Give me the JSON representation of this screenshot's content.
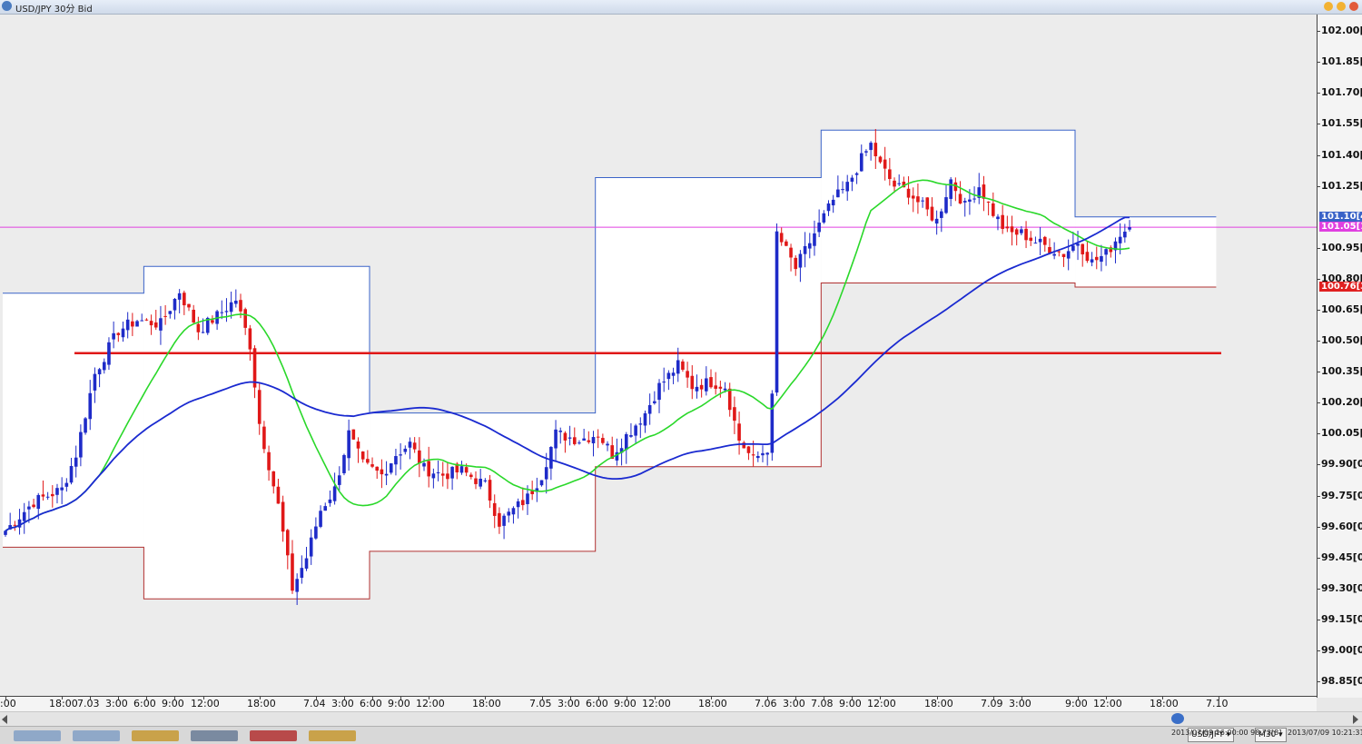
{
  "window": {
    "title": "USD/JPY 30分 Bid"
  },
  "price_axis": {
    "labels": [
      "102.00[",
      "101.85[",
      "101.70[",
      "101.55[",
      "101.40[",
      "101.25[",
      "100.95[",
      "100.80[",
      "100.65[",
      "100.50[",
      "100.35[",
      "100.20[",
      "100.05[",
      "99.90[0]",
      "99.75[0]",
      "99.60[0]",
      "99.45[0]",
      "99.30[0]",
      "99.15[0]",
      "99.00[0]",
      "98.85[0]"
    ],
    "values": [
      102.0,
      101.85,
      101.7,
      101.55,
      101.4,
      101.25,
      100.95,
      100.8,
      100.65,
      100.5,
      100.35,
      100.2,
      100.05,
      99.9,
      99.75,
      99.6,
      99.45,
      99.3,
      99.15,
      99.0,
      98.85
    ],
    "tags": [
      {
        "text": "101.10[4",
        "value": 101.1,
        "bg": "#3a63c8",
        "fg": "#ffffff"
      },
      {
        "text": "101.05[1",
        "value": 101.05,
        "bg": "#e040e0",
        "fg": "#ffffff"
      },
      {
        "text": "100.76[3",
        "value": 100.76,
        "bg": "#e02020",
        "fg": "#ffffff"
      }
    ]
  },
  "time_axis": {
    "labels": [
      ":00",
      "18:00",
      "7.03",
      "3:00",
      "6:00",
      "9:00",
      "12:00",
      "18:00",
      "7.04",
      "3:00",
      "6:00",
      "9:00",
      "12:00",
      "18:00",
      "7.05",
      "3:00",
      "6:00",
      "9:00",
      "12:00",
      "18:00",
      "7.06",
      "3:00",
      "7.08",
      "9:00",
      "12:00",
      "18:00",
      "7.09",
      "3:00",
      "9:00",
      "12:00",
      "18:00",
      "7.10"
    ],
    "bars": [
      0,
      12,
      18,
      24,
      30,
      36,
      42,
      54,
      66,
      72,
      78,
      84,
      90,
      102,
      114,
      120,
      126,
      132,
      138,
      150,
      162,
      168,
      174,
      180,
      186,
      198,
      210,
      216,
      228,
      234,
      246,
      258
    ]
  },
  "statusbar": {
    "nav_symbol": "USD/JPY",
    "timeframe": "M30",
    "cursor_info": "2013/07/09 16:00:00  98.73[8]",
    "server_time": "2013/07/09 10:21:31"
  },
  "colors": {
    "bull": "#1e2bc8",
    "bear": "#e01818",
    "ma_fast": "#2ad82a",
    "ma_slow": "#1a2ad0",
    "hline_magenta": "#e040e0",
    "hline_red": "#e01818",
    "box_high": "#3a63c8",
    "box_low": "#b03030"
  },
  "chart_data": {
    "type": "candlestick",
    "symbol": "USD/JPY",
    "timeframe": "30分",
    "ylim": [
      98.78,
      102.08
    ],
    "bar_count": 262,
    "horizontal_lines": [
      {
        "price": 101.05,
        "color": "magenta"
      },
      {
        "price": 100.44,
        "color": "red"
      }
    ],
    "daily_ranges": [
      {
        "from_bar": 0,
        "to_bar": 30,
        "high": 100.73,
        "low": 99.5
      },
      {
        "from_bar": 30,
        "to_bar": 78,
        "high": 100.86,
        "low": 99.25
      },
      {
        "from_bar": 78,
        "to_bar": 126,
        "high": 100.15,
        "low": 99.48
      },
      {
        "from_bar": 126,
        "to_bar": 174,
        "high": 101.29,
        "low": 99.89
      },
      {
        "from_bar": 174,
        "to_bar": 228,
        "high": 101.52,
        "low": 100.78
      },
      {
        "from_bar": 228,
        "to_bar": 258,
        "high": 101.1,
        "low": 100.76
      }
    ],
    "close_anchors": [
      [
        0,
        99.58
      ],
      [
        6,
        99.72
      ],
      [
        12,
        99.78
      ],
      [
        15,
        99.95
      ],
      [
        19,
        100.34
      ],
      [
        24,
        100.55
      ],
      [
        28,
        100.6
      ],
      [
        33,
        100.58
      ],
      [
        37,
        100.74
      ],
      [
        41,
        100.55
      ],
      [
        45,
        100.62
      ],
      [
        49,
        100.7
      ],
      [
        52,
        100.48
      ],
      [
        54,
        100.1
      ],
      [
        58,
        99.7
      ],
      [
        61,
        99.3
      ],
      [
        64,
        99.45
      ],
      [
        67,
        99.68
      ],
      [
        70,
        99.78
      ],
      [
        73,
        100.05
      ],
      [
        76,
        99.9
      ],
      [
        80,
        99.85
      ],
      [
        83,
        99.95
      ],
      [
        86,
        100.0
      ],
      [
        89,
        99.88
      ],
      [
        93,
        99.85
      ],
      [
        97,
        99.87
      ],
      [
        102,
        99.8
      ],
      [
        105,
        99.62
      ],
      [
        108,
        99.68
      ],
      [
        111,
        99.74
      ],
      [
        114,
        99.85
      ],
      [
        117,
        100.05
      ],
      [
        122,
        100.02
      ],
      [
        126,
        100.05
      ],
      [
        129,
        99.95
      ],
      [
        132,
        100.04
      ],
      [
        136,
        100.15
      ],
      [
        139,
        100.28
      ],
      [
        143,
        100.38
      ],
      [
        146,
        100.28
      ],
      [
        150,
        100.3
      ],
      [
        153,
        100.28
      ],
      [
        156,
        100.02
      ],
      [
        159,
        99.92
      ],
      [
        162,
        99.98
      ],
      [
        163,
        100.22
      ],
      [
        164,
        101.02
      ],
      [
        168,
        100.85
      ],
      [
        172,
        101.02
      ],
      [
        176,
        101.18
      ],
      [
        179,
        101.25
      ],
      [
        182,
        101.38
      ],
      [
        184,
        101.45
      ],
      [
        186,
        101.35
      ],
      [
        189,
        101.25
      ],
      [
        192,
        101.22
      ],
      [
        195,
        101.15
      ],
      [
        198,
        101.08
      ],
      [
        201,
        101.28
      ],
      [
        204,
        101.15
      ],
      [
        207,
        101.25
      ],
      [
        210,
        101.12
      ],
      [
        213,
        101.02
      ],
      [
        216,
        101.02
      ],
      [
        219,
        100.98
      ],
      [
        222,
        100.95
      ],
      [
        225,
        100.92
      ],
      [
        228,
        100.98
      ],
      [
        231,
        100.88
      ],
      [
        234,
        100.92
      ],
      [
        237,
        101.02
      ],
      [
        239,
        101.05
      ]
    ]
  }
}
